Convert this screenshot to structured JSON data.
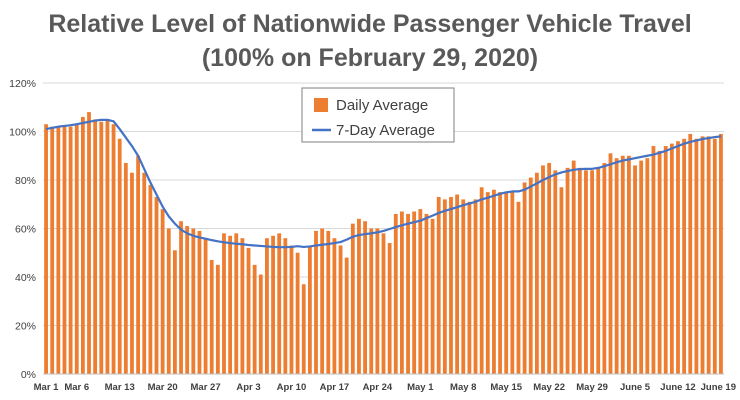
{
  "chart_data": {
    "type": "bar",
    "title": "Relative Level of Nationwide Passenger Vehicle Travel",
    "subtitle": "(100% on February 29, 2020)",
    "xlabel": "",
    "ylabel": "",
    "ylim": [
      0,
      120
    ],
    "yticks": [
      "0%",
      "20%",
      "40%",
      "60%",
      "80%",
      "100%",
      "120%"
    ],
    "y_tick_values": [
      0,
      20,
      40,
      60,
      80,
      100,
      120
    ],
    "grid": true,
    "legend_position": "top-center",
    "categories": [
      "Mar 1",
      "Mar 2",
      "Mar 3",
      "Mar 4",
      "Mar 5",
      "Mar 6",
      "Mar 7",
      "Mar 8",
      "Mar 9",
      "Mar 10",
      "Mar 11",
      "Mar 12",
      "Mar 13",
      "Mar 14",
      "Mar 15",
      "Mar 16",
      "Mar 17",
      "Mar 18",
      "Mar 19",
      "Mar 20",
      "Mar 21",
      "Mar 22",
      "Mar 23",
      "Mar 24",
      "Mar 25",
      "Mar 26",
      "Mar 27",
      "Mar 28",
      "Mar 29",
      "Mar 30",
      "Mar 31",
      "Apr 1",
      "Apr 2",
      "Apr 3",
      "Apr 4",
      "Apr 5",
      "Apr 6",
      "Apr 7",
      "Apr 8",
      "Apr 9",
      "Apr 10",
      "Apr 11",
      "Apr 12",
      "Apr 13",
      "Apr 14",
      "Apr 15",
      "Apr 16",
      "Apr 17",
      "Apr 18",
      "Apr 19",
      "Apr 20",
      "Apr 21",
      "Apr 22",
      "Apr 23",
      "Apr 24",
      "Apr 25",
      "Apr 26",
      "Apr 27",
      "Apr 28",
      "Apr 29",
      "Apr 30",
      "May 1",
      "May 2",
      "May 3",
      "May 4",
      "May 5",
      "May 6",
      "May 7",
      "May 8",
      "May 9",
      "May 10",
      "May 11",
      "May 12",
      "May 13",
      "May 14",
      "May 15",
      "May 16",
      "May 17",
      "May 18",
      "May 19",
      "May 20",
      "May 21",
      "May 22",
      "May 23",
      "May 24",
      "May 25",
      "May 26",
      "May 27",
      "May 28",
      "May 29",
      "May 30",
      "May 31",
      "Jun 1",
      "Jun 2",
      "Jun 3",
      "Jun 4",
      "Jun 5",
      "Jun 6",
      "Jun 7",
      "Jun 8",
      "Jun 9",
      "Jun 10",
      "Jun 11",
      "Jun 12",
      "Jun 13",
      "Jun 14",
      "Jun 15",
      "Jun 16",
      "Jun 17",
      "Jun 18",
      "Jun 19"
    ],
    "x_tick_labels": [
      {
        "index": 0,
        "label": "Mar 1"
      },
      {
        "index": 5,
        "label": "Mar 6"
      },
      {
        "index": 12,
        "label": "Mar 13"
      },
      {
        "index": 19,
        "label": "Mar 20"
      },
      {
        "index": 26,
        "label": "Mar 27"
      },
      {
        "index": 33,
        "label": "Apr 3"
      },
      {
        "index": 40,
        "label": "Apr 10"
      },
      {
        "index": 47,
        "label": "Apr 17"
      },
      {
        "index": 54,
        "label": "Apr 24"
      },
      {
        "index": 61,
        "label": "May 1"
      },
      {
        "index": 68,
        "label": "May 8"
      },
      {
        "index": 75,
        "label": "May 15"
      },
      {
        "index": 82,
        "label": "May 22"
      },
      {
        "index": 89,
        "label": "May 29"
      },
      {
        "index": 96,
        "label": "June 5"
      },
      {
        "index": 103,
        "label": "June 12"
      },
      {
        "index": 110,
        "label": "June 19"
      }
    ],
    "series": [
      {
        "name": "Daily Average",
        "kind": "bar",
        "color": "#ED7D31",
        "values": [
          103,
          102,
          102,
          102,
          102,
          103,
          106,
          108,
          105,
          104,
          105,
          103,
          97,
          87,
          83,
          90,
          83,
          78,
          73,
          68,
          60,
          51,
          63,
          61,
          60,
          59,
          56,
          47,
          45,
          58,
          57,
          58,
          56,
          52,
          45,
          41,
          56,
          57,
          58,
          56,
          53,
          50,
          37,
          53,
          59,
          60,
          59,
          56,
          53,
          48,
          62,
          64,
          63,
          60,
          60,
          58,
          54,
          66,
          67,
          66,
          67,
          68,
          66,
          64,
          73,
          72,
          73,
          74,
          72,
          71,
          72,
          77,
          75,
          76,
          75,
          75,
          75,
          71,
          79,
          81,
          83,
          86,
          87,
          84,
          77,
          85,
          88,
          85,
          84,
          84,
          85,
          87,
          91,
          89,
          90,
          90,
          86,
          88,
          89,
          94,
          92,
          94,
          95,
          96,
          97,
          99,
          97,
          98,
          98,
          97,
          99
        ]
      },
      {
        "name": "7-Day Average",
        "kind": "line",
        "color": "#4472C4",
        "values": [
          101,
          101.5,
          102,
          102.3,
          102.6,
          103,
          103.5,
          104,
          104.5,
          104.8,
          104.8,
          104.2,
          101,
          97.5,
          94,
          90,
          84.5,
          79,
          74,
          69,
          65,
          62,
          59.5,
          58,
          57,
          56.3,
          55.8,
          55.2,
          54.7,
          54.3,
          54,
          53.7,
          53.5,
          53.2,
          53,
          52.8,
          52.6,
          52.4,
          52.3,
          52.3,
          52.4,
          52.7,
          52.4,
          52.6,
          53,
          53.3,
          53.6,
          54,
          54.4,
          55.4,
          56.6,
          57.3,
          57.7,
          58,
          58.4,
          59,
          59.8,
          60.6,
          61.3,
          62,
          62.6,
          63.2,
          64.3,
          65.3,
          66.4,
          67.3,
          68,
          68.8,
          69.6,
          70.3,
          71,
          72,
          72.7,
          73.5,
          74.3,
          74.9,
          75.3,
          75.3,
          76,
          77.3,
          78.6,
          80,
          81.2,
          82.3,
          83.1,
          83.7,
          84.2,
          84.5,
          84.6,
          84.6,
          85,
          85.7,
          86.5,
          87.3,
          88,
          88.5,
          89,
          89.5,
          90,
          90.5,
          91.2,
          92,
          93,
          94,
          95,
          95.7,
          96.3,
          96.9,
          97.3,
          97.7,
          98
        ]
      }
    ]
  }
}
